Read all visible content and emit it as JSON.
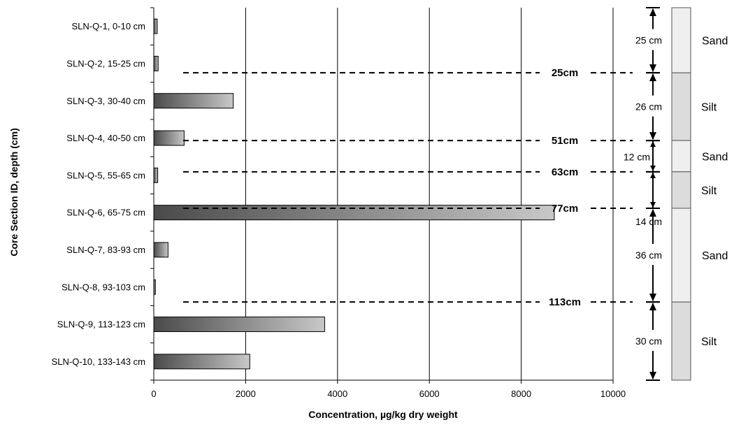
{
  "chart_data": {
    "type": "bar",
    "orientation": "horizontal",
    "categories": [
      "SLN-Q-1, 0-10 cm",
      "SLN-Q-2, 15-25 cm",
      "SLN-Q-3, 30-40 cm",
      "SLN-Q-4, 40-50 cm",
      "SLN-Q-5, 55-65 cm",
      "SLN-Q-6, 65-75 cm",
      "SLN-Q-7, 83-93 cm",
      "SLN-Q-8, 93-103 cm",
      "SLN-Q-9, 113-123 cm",
      "SLN-Q-10, 133-143 cm"
    ],
    "values": [
      75,
      95,
      1730,
      660,
      85,
      8720,
      310,
      35,
      3720,
      2090
    ],
    "xlabel": "Concentration, µg/kg dry weight",
    "ylabel": "Core Section ID, depth (cm)",
    "xlim": [
      0,
      10000
    ],
    "xticks": [
      0,
      2000,
      4000,
      6000,
      8000,
      10000
    ],
    "xtick_labels": [
      "0",
      "2000",
      "4000",
      "6000",
      "8000",
      "10000"
    ],
    "grid": "vertical",
    "depth_markers": [
      {
        "value": 25,
        "label": "25cm"
      },
      {
        "value": 51,
        "label": "51cm"
      },
      {
        "value": 63,
        "label": "63cm"
      },
      {
        "value": 77,
        "label": "77cm"
      },
      {
        "value": 113,
        "label": "113cm"
      }
    ],
    "layers": [
      {
        "top": 0,
        "bottom": 25,
        "thickness_label": "25 cm",
        "material": "Sand"
      },
      {
        "top": 25,
        "bottom": 51,
        "thickness_label": "26 cm",
        "material": "Silt"
      },
      {
        "top": 51,
        "bottom": 63,
        "thickness_label": "12 cm",
        "material": "Sand"
      },
      {
        "top": 63,
        "bottom": 77,
        "thickness_label": "14 cm",
        "material": "Silt"
      },
      {
        "top": 77,
        "bottom": 113,
        "thickness_label": "36 cm",
        "material": "Sand"
      },
      {
        "top": 113,
        "bottom": 143,
        "thickness_label": "30 cm",
        "material": "Silt"
      }
    ],
    "colors": {
      "bar_gradient_start": "#4a4a4a",
      "bar_gradient_end": "#c8c8c8",
      "sand": "#efefef",
      "silt": "#dcdcdc",
      "grid": "#000000"
    }
  }
}
